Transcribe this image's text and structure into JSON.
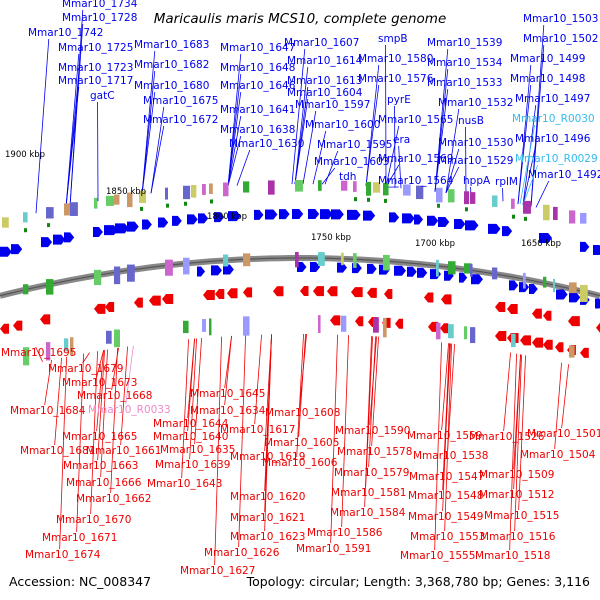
{
  "title": "Maricaulis maris MCS10, complete genome",
  "footer": {
    "accession": "Accession: NC_008347",
    "summary": "Topology: circular; Length: 3,368,780 bp; Genes: 3,116"
  },
  "colors": {
    "forward_gene": "#0000ee",
    "reverse_gene": "#ee0000",
    "forward_rna": "#33bbee",
    "reverse_rna": "#ee88cc",
    "backbone": "#888888",
    "marker": "#118811"
  },
  "scale_ticks": [
    "1900 kbp",
    "1850 kbp",
    "1800 kbp",
    "1750 kbp",
    "1700 kbp",
    "1650 kbp"
  ],
  "top_labels": [
    {
      "text": "Mmar10_1734",
      "kind": "gene"
    },
    {
      "text": "Mmar10_1728",
      "kind": "gene"
    },
    {
      "text": "Mmar10_1742",
      "kind": "gene"
    },
    {
      "text": "Mmar10_1725",
      "kind": "gene"
    },
    {
      "text": "Mmar10_1723",
      "kind": "gene"
    },
    {
      "text": "Mmar10_1717",
      "kind": "gene"
    },
    {
      "text": "gatC",
      "kind": "gene"
    },
    {
      "text": "Mmar10_1683",
      "kind": "gene"
    },
    {
      "text": "Mmar10_1682",
      "kind": "gene"
    },
    {
      "text": "Mmar10_1680",
      "kind": "gene"
    },
    {
      "text": "Mmar10_1675",
      "kind": "gene"
    },
    {
      "text": "Mmar10_1672",
      "kind": "gene"
    },
    {
      "text": "Mmar10_1647",
      "kind": "gene"
    },
    {
      "text": "Mmar10_1648",
      "kind": "gene"
    },
    {
      "text": "Mmar10_1646",
      "kind": "gene"
    },
    {
      "text": "Mmar10_1641",
      "kind": "gene"
    },
    {
      "text": "Mmar10_1638",
      "kind": "gene"
    },
    {
      "text": "Mmar10_1630",
      "kind": "gene"
    },
    {
      "text": "Mmar10_1607",
      "kind": "gene"
    },
    {
      "text": "Mmar10_1614",
      "kind": "gene"
    },
    {
      "text": "Mmar10_1613",
      "kind": "gene"
    },
    {
      "text": "Mmar10_1604",
      "kind": "gene"
    },
    {
      "text": "Mmar10_1597",
      "kind": "gene"
    },
    {
      "text": "Mmar10_1600",
      "kind": "gene"
    },
    {
      "text": "Mmar10_1595",
      "kind": "gene"
    },
    {
      "text": "Mmar10_1603",
      "kind": "gene"
    },
    {
      "text": "tdh",
      "kind": "gene"
    },
    {
      "text": "smpB",
      "kind": "gene"
    },
    {
      "text": "Mmar10_1580",
      "kind": "gene"
    },
    {
      "text": "Mmar10_1576",
      "kind": "gene"
    },
    {
      "text": "pyrE",
      "kind": "gene"
    },
    {
      "text": "Mmar10_1565",
      "kind": "gene"
    },
    {
      "text": "era",
      "kind": "gene"
    },
    {
      "text": "Mmar10_1569",
      "kind": "gene"
    },
    {
      "text": "Mmar10_1564",
      "kind": "gene"
    },
    {
      "text": "Mmar10_1539",
      "kind": "gene"
    },
    {
      "text": "Mmar10_1534",
      "kind": "gene"
    },
    {
      "text": "Mmar10_1533",
      "kind": "gene"
    },
    {
      "text": "Mmar10_1532",
      "kind": "gene"
    },
    {
      "text": "nusB",
      "kind": "gene"
    },
    {
      "text": "Mmar10_1530",
      "kind": "gene"
    },
    {
      "text": "Mmar10_1529",
      "kind": "gene"
    },
    {
      "text": "hppA",
      "kind": "gene"
    },
    {
      "text": "rplM",
      "kind": "gene"
    },
    {
      "text": "Mmar10_1503",
      "kind": "gene"
    },
    {
      "text": "Mmar10_1502",
      "kind": "gene"
    },
    {
      "text": "Mmar10_1499",
      "kind": "gene"
    },
    {
      "text": "Mmar10_1498",
      "kind": "gene"
    },
    {
      "text": "Mmar10_1497",
      "kind": "gene"
    },
    {
      "text": "Mmar10_R0030",
      "kind": "rna"
    },
    {
      "text": "Mmar10_1496",
      "kind": "gene"
    },
    {
      "text": "Mmar10_R0029",
      "kind": "rna"
    },
    {
      "text": "Mmar10_1492",
      "kind": "gene"
    }
  ],
  "bottom_labels": [
    {
      "text": "Mmar10_1695",
      "kind": "gene"
    },
    {
      "text": "Mmar10_1679",
      "kind": "gene"
    },
    {
      "text": "Mmar10_1673",
      "kind": "gene"
    },
    {
      "text": "Mmar10_1668",
      "kind": "gene"
    },
    {
      "text": "Mmar10_1684",
      "kind": "gene"
    },
    {
      "text": "Mmar10_R0033",
      "kind": "rna"
    },
    {
      "text": "Mmar10_1665",
      "kind": "gene"
    },
    {
      "text": "Mmar10_1681",
      "kind": "gene"
    },
    {
      "text": "Mmar10_1661",
      "kind": "gene"
    },
    {
      "text": "Mmar10_1663",
      "kind": "gene"
    },
    {
      "text": "Mmar10_1666",
      "kind": "gene"
    },
    {
      "text": "Mmar10_1662",
      "kind": "gene"
    },
    {
      "text": "Mmar10_1670",
      "kind": "gene"
    },
    {
      "text": "Mmar10_1671",
      "kind": "gene"
    },
    {
      "text": "Mmar10_1674",
      "kind": "gene"
    },
    {
      "text": "Mmar10_1645",
      "kind": "gene"
    },
    {
      "text": "Mmar10_1634",
      "kind": "gene"
    },
    {
      "text": "Mmar10_1644",
      "kind": "gene"
    },
    {
      "text": "Mmar10_1640",
      "kind": "gene"
    },
    {
      "text": "Mmar10_1635",
      "kind": "gene"
    },
    {
      "text": "Mmar10_1639",
      "kind": "gene"
    },
    {
      "text": "Mmar10_1643",
      "kind": "gene"
    },
    {
      "text": "Mmar10_1617",
      "kind": "gene"
    },
    {
      "text": "Mmar10_1619",
      "kind": "gene"
    },
    {
      "text": "Mmar10_1620",
      "kind": "gene"
    },
    {
      "text": "Mmar10_1621",
      "kind": "gene"
    },
    {
      "text": "Mmar10_1623",
      "kind": "gene"
    },
    {
      "text": "Mmar10_1626",
      "kind": "gene"
    },
    {
      "text": "Mmar10_1627",
      "kind": "gene"
    },
    {
      "text": "Mmar10_1608",
      "kind": "gene"
    },
    {
      "text": "Mmar10_1605",
      "kind": "gene"
    },
    {
      "text": "Mmar10_1606",
      "kind": "gene"
    },
    {
      "text": "Mmar10_1590",
      "kind": "gene"
    },
    {
      "text": "Mmar10_1578",
      "kind": "gene"
    },
    {
      "text": "Mmar10_1579",
      "kind": "gene"
    },
    {
      "text": "Mmar10_1581",
      "kind": "gene"
    },
    {
      "text": "Mmar10_1584",
      "kind": "gene"
    },
    {
      "text": "Mmar10_1586",
      "kind": "gene"
    },
    {
      "text": "Mmar10_1591",
      "kind": "gene"
    },
    {
      "text": "Mmar10_1559",
      "kind": "gene"
    },
    {
      "text": "Mmar10_1538",
      "kind": "gene"
    },
    {
      "text": "Mmar10_1547",
      "kind": "gene"
    },
    {
      "text": "Mmar10_1548",
      "kind": "gene"
    },
    {
      "text": "Mmar10_1549",
      "kind": "gene"
    },
    {
      "text": "Mmar10_1553",
      "kind": "gene"
    },
    {
      "text": "Mmar10_1555",
      "kind": "gene"
    },
    {
      "text": "Mmar10_1526",
      "kind": "gene"
    },
    {
      "text": "Mmar10_1509",
      "kind": "gene"
    },
    {
      "text": "Mmar10_1512",
      "kind": "gene"
    },
    {
      "text": "Mmar10_1515",
      "kind": "gene"
    },
    {
      "text": "Mmar10_1516",
      "kind": "gene"
    },
    {
      "text": "Mmar10_1518",
      "kind": "gene"
    },
    {
      "text": "Mmar10_1501",
      "kind": "gene"
    },
    {
      "text": "Mmar10_1504",
      "kind": "gene"
    }
  ]
}
